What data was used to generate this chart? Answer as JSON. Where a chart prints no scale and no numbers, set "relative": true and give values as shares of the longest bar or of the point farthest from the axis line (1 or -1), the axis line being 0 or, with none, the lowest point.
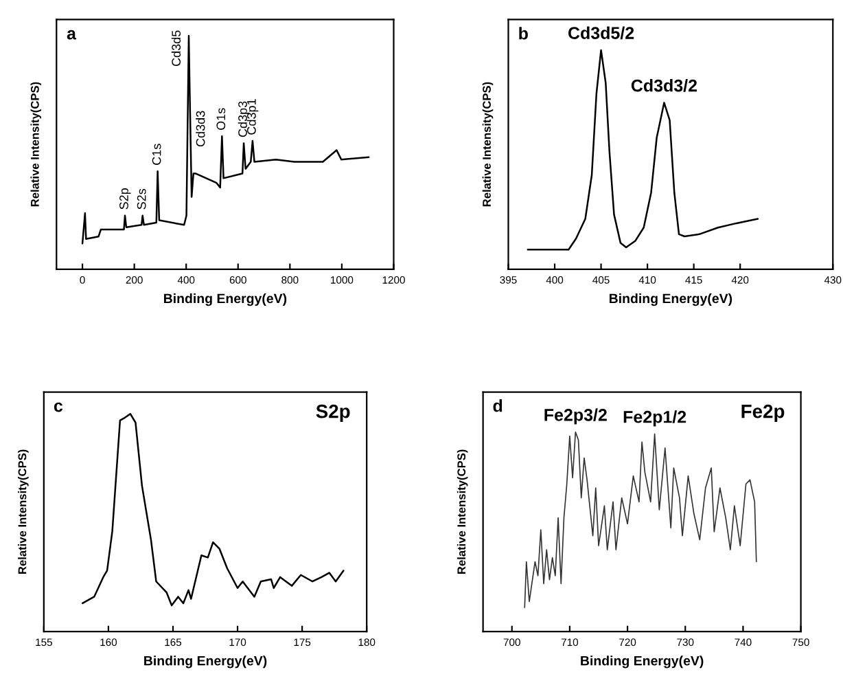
{
  "chart_data": [
    {
      "type": "line",
      "relative": true,
      "xlabel": "Binding Energy(eV)",
      "ylabel": "Relative Intensity(CPS)",
      "xlim": [
        -100,
        1200
      ],
      "xticks": [
        0,
        200,
        400,
        600,
        800,
        1000,
        1200
      ],
      "tick_labels": "x",
      "grid": false,
      "legend": false,
      "marker": "none",
      "line_style": "solid",
      "annotations": [
        "a",
        {
          "text": "S2p",
          "x": 164,
          "y": 0.23
        },
        {
          "text": "S2s",
          "x": 232,
          "y": 0.23
        },
        {
          "text": "C1s",
          "x": 290,
          "y": 0.42
        },
        {
          "text": "Cd3d5",
          "x": 410,
          "y": 1.0
        },
        {
          "text": "Cd3d3",
          "x": 415,
          "y": 0.68
        },
        {
          "text": "O1s",
          "x": 538,
          "y": 0.57
        },
        {
          "text": "Cd3p3",
          "x": 622,
          "y": 0.54
        },
        {
          "text": "Cd3p1",
          "x": 656,
          "y": 0.55
        }
      ],
      "series": [
        {
          "color": "#000000",
          "x": [
            0,
            10,
            14,
            62,
            71,
            160,
            164,
            169,
            228,
            232,
            237,
            285,
            290,
            296,
            392,
            401,
            410,
            415,
            421,
            428,
            437,
            517,
            531,
            538,
            544,
            617,
            622,
            629,
            649,
            656,
            663,
            746,
            817,
            927,
            980,
            998,
            1104
          ],
          "values": [
            0.11,
            0.24,
            0.13,
            0.14,
            0.17,
            0.17,
            0.23,
            0.18,
            0.19,
            0.23,
            0.19,
            0.2,
            0.42,
            0.21,
            0.19,
            0.23,
            1.0,
            0.68,
            0.31,
            0.41,
            0.41,
            0.37,
            0.35,
            0.57,
            0.39,
            0.41,
            0.54,
            0.43,
            0.46,
            0.55,
            0.46,
            0.47,
            0.46,
            0.46,
            0.51,
            0.47,
            0.48
          ]
        }
      ]
    },
    {
      "type": "line",
      "relative": true,
      "xlabel": "Binding Energy(eV)",
      "ylabel": "Relative Intensity(CPS)",
      "xlim": [
        395,
        430
      ],
      "xticks": [
        395,
        400,
        405,
        410,
        415,
        420,
        430
      ],
      "tick_labels": "x",
      "grid": false,
      "legend": false,
      "marker": "none",
      "line_style": "solid",
      "annotations": [
        "b",
        {
          "text": "Cd3d5/2",
          "x": 405.0,
          "y": 1.0
        },
        {
          "text": "Cd3d3/2",
          "x": 411.8,
          "y": 0.76
        }
      ],
      "series": [
        {
          "color": "#000000",
          "x": [
            397.1,
            398.7,
            401.5,
            402.3,
            403.3,
            404.0,
            404.5,
            405.0,
            405.5,
            405.9,
            406.4,
            407.1,
            407.7,
            408.7,
            409.6,
            410.4,
            411.0,
            411.8,
            412.4,
            412.9,
            413.4,
            414.0,
            415.6,
            417.6,
            419.6,
            421.9
          ],
          "values": [
            0.09,
            0.09,
            0.09,
            0.14,
            0.23,
            0.43,
            0.8,
            1.0,
            0.85,
            0.54,
            0.25,
            0.12,
            0.1,
            0.13,
            0.19,
            0.35,
            0.6,
            0.76,
            0.68,
            0.35,
            0.16,
            0.15,
            0.16,
            0.19,
            0.21,
            0.23
          ]
        }
      ]
    },
    {
      "type": "line",
      "relative": true,
      "xlabel": "Binding Energy(eV)",
      "ylabel": "Relative Intensity(CPS)",
      "xlim": [
        155,
        180
      ],
      "xticks": [
        155,
        160,
        165,
        170,
        175,
        180
      ],
      "tick_labels": "x",
      "grid": false,
      "legend": false,
      "marker": "none",
      "line_style": "solid",
      "annotations": [
        "c",
        "S2p"
      ],
      "series": [
        {
          "color": "#000000",
          "x": [
            158.0,
            158.9,
            159.6,
            159.9,
            160.3,
            160.9,
            161.2,
            161.7,
            162.1,
            162.6,
            163.3,
            163.7,
            164.5,
            164.9,
            165.4,
            165.8,
            166.2,
            166.4,
            167.2,
            167.7,
            168.1,
            168.6,
            169.2,
            170.0,
            170.4,
            171.3,
            171.8,
            172.6,
            172.8,
            173.3,
            174.2,
            174.9,
            175.8,
            176.5,
            177.1,
            177.6,
            178.2
          ],
          "values": [
            0.13,
            0.16,
            0.25,
            0.28,
            0.46,
            0.97,
            0.98,
            1.0,
            0.96,
            0.67,
            0.42,
            0.23,
            0.18,
            0.12,
            0.16,
            0.13,
            0.19,
            0.15,
            0.35,
            0.34,
            0.41,
            0.38,
            0.29,
            0.2,
            0.23,
            0.16,
            0.23,
            0.24,
            0.2,
            0.25,
            0.21,
            0.26,
            0.23,
            0.25,
            0.27,
            0.23,
            0.28
          ]
        }
      ]
    },
    {
      "type": "line",
      "relative": true,
      "xlabel": "Binding Energy(eV)",
      "ylabel": "Relative Intensity(CPS)",
      "xlim": [
        695,
        750
      ],
      "xticks": [
        700,
        710,
        720,
        730,
        740,
        750
      ],
      "tick_labels": "x",
      "grid": false,
      "legend": false,
      "marker": "none",
      "line_style": "solid",
      "annotations": [
        "d",
        "Fe2p",
        {
          "text": "Fe2p3/2",
          "x": 711.0,
          "y": 1.0
        },
        {
          "text": "Fe2p1/2",
          "x": 724.7,
          "y": 0.99
        }
      ],
      "series": [
        {
          "color": "#333333",
          "x": [
            702.2,
            702.5,
            703,
            704,
            704.5,
            705,
            705.5,
            706,
            706.5,
            707,
            707.5,
            708,
            708.5,
            709,
            709.5,
            710,
            710.5,
            711,
            711.5,
            712,
            712.5,
            713,
            714,
            714.5,
            715,
            716,
            716.5,
            717.5,
            718,
            719,
            720,
            721,
            722,
            722.5,
            723,
            724,
            724.7,
            725.5,
            726.5,
            727.5,
            728,
            729,
            729.5,
            730.5,
            731.5,
            732.5,
            733.5,
            734.5,
            735,
            736,
            737,
            737.8,
            738.5,
            739.5,
            740.5,
            741.2,
            742,
            742.3
          ],
          "values": [
            0.12,
            0.35,
            0.15,
            0.35,
            0.28,
            0.51,
            0.24,
            0.41,
            0.26,
            0.37,
            0.28,
            0.57,
            0.24,
            0.57,
            0.74,
            0.98,
            0.77,
            1.0,
            0.96,
            0.67,
            0.87,
            0.76,
            0.48,
            0.72,
            0.43,
            0.63,
            0.41,
            0.65,
            0.41,
            0.67,
            0.54,
            0.78,
            0.65,
            0.95,
            0.8,
            0.65,
            0.99,
            0.61,
            0.92,
            0.52,
            0.82,
            0.67,
            0.48,
            0.78,
            0.59,
            0.46,
            0.72,
            0.82,
            0.5,
            0.72,
            0.57,
            0.41,
            0.63,
            0.43,
            0.74,
            0.76,
            0.65,
            0.35
          ]
        }
      ]
    }
  ]
}
